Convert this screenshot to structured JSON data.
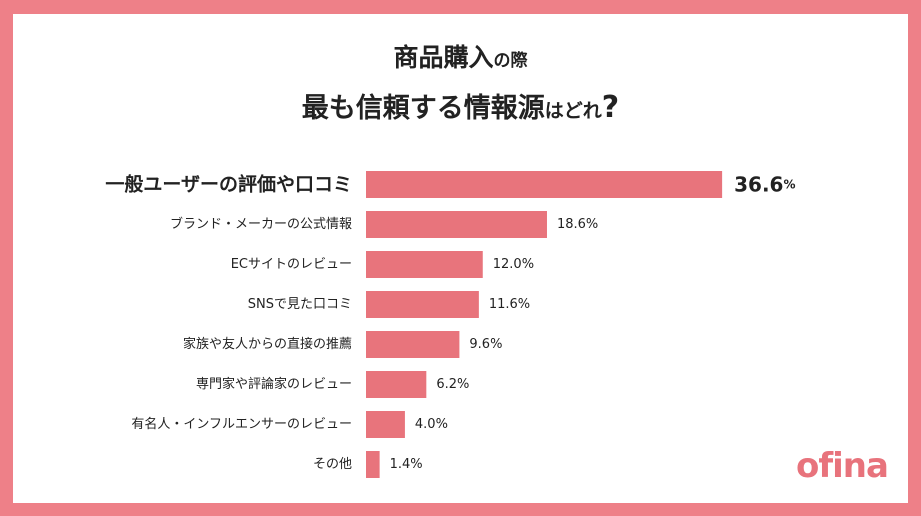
{
  "header": {
    "title_line1_main": "商品購入",
    "title_line1_small": "の際",
    "title_line2_part1": "最も信頼する情報源",
    "title_line2_small": "はどれ",
    "title_line2_end": "?"
  },
  "chart_data": {
    "type": "bar",
    "orientation": "horizontal",
    "categories": [
      "一般ユーザーの評価や口コミ",
      "ブランド・メーカーの公式情報",
      "ECサイトのレビュー",
      "SNSで見た口コミ",
      "家族や友人からの直接の推薦",
      "専門家や評論家のレビュー",
      "有名人・インフルエンサーのレビュー",
      "その他"
    ],
    "values": [
      36.6,
      18.6,
      12.0,
      11.6,
      9.6,
      6.2,
      4.0,
      1.4
    ],
    "value_labels": [
      "36.6",
      "18.6%",
      "12.0%",
      "11.6%",
      "9.6%",
      "6.2%",
      "4.0%",
      "1.4%"
    ],
    "highlight_unit": "%",
    "bar_color": "#e8747c",
    "grid": false
  },
  "logo": {
    "text": "ofina"
  },
  "colors": {
    "frame": "#ee8088",
    "bar": "#e8747c",
    "text": "#222222",
    "logo": "#e8737c"
  }
}
